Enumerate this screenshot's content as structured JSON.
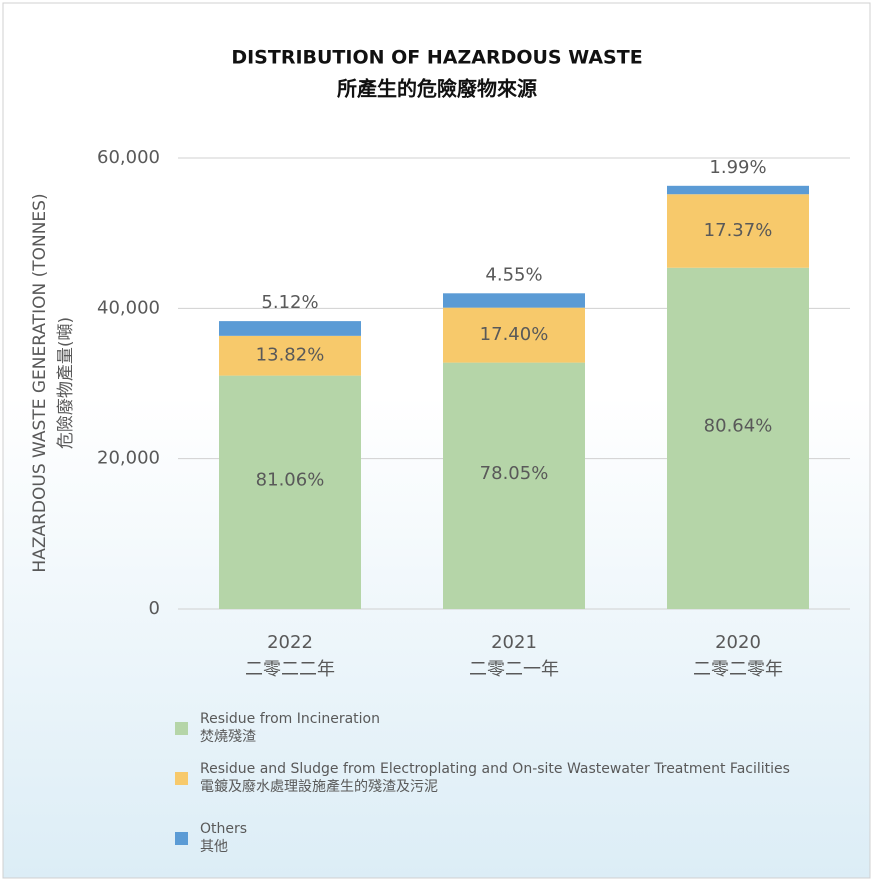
{
  "chart_data": {
    "type": "stacked_bar",
    "title": "DISTRIBUTION OF HAZARDOUS WASTE",
    "title_zh": "所產生的危險廢物來源",
    "y_label": "HAZARDOUS WASTE GENERATION (TONNES)",
    "y_label_zh": "危險廢物產量(噸)",
    "categories": [
      "2022",
      "2021",
      "2020"
    ],
    "categories_zh": [
      "二零二二年",
      "二零二一年",
      "二零二零年"
    ],
    "ylim": [
      0,
      60000
    ],
    "yticks": [
      0,
      {
        "value": 20000,
        "label": "20,000"
      },
      {
        "value": 40000,
        "label": "40,000"
      },
      {
        "value": 60000,
        "label": "60,000"
      }
    ],
    "grid": true,
    "series": [
      {
        "name": "Residue from Incineration",
        "name_zh": "焚燒殘渣",
        "color": "#b5d5a8",
        "values": [
          31050,
          32780,
          45400
        ],
        "percent_labels": [
          {
            "value": 81.06,
            "label": "81.06%"
          },
          {
            "value": 78.05,
            "label": "78.05%"
          },
          {
            "value": 80.64,
            "label": "80.64%"
          }
        ]
      },
      {
        "name": "Residue and Sludge from Electroplating and On-site Wastewater Treatment Facilities",
        "name_zh": "電鍍及廢水處理設施產生的殘渣及污泥",
        "color": "#f7c96b",
        "values": [
          5290,
          7310,
          9780
        ],
        "percent_labels": [
          {
            "value": 13.82,
            "label": "13.82%"
          },
          {
            "value": 17.4,
            "label": "17.40%"
          },
          {
            "value": 17.37,
            "label": "17.37%"
          }
        ]
      },
      {
        "name": "Others",
        "name_zh": "其他",
        "color": "#5b9bd5",
        "values": [
          1960,
          1910,
          1120
        ],
        "percent_labels": [
          {
            "value": 5.12,
            "label": "5.12%"
          },
          {
            "value": 4.55,
            "label": "4.55%"
          },
          {
            "value": 1.99,
            "label": "1.99%"
          }
        ]
      }
    ]
  }
}
